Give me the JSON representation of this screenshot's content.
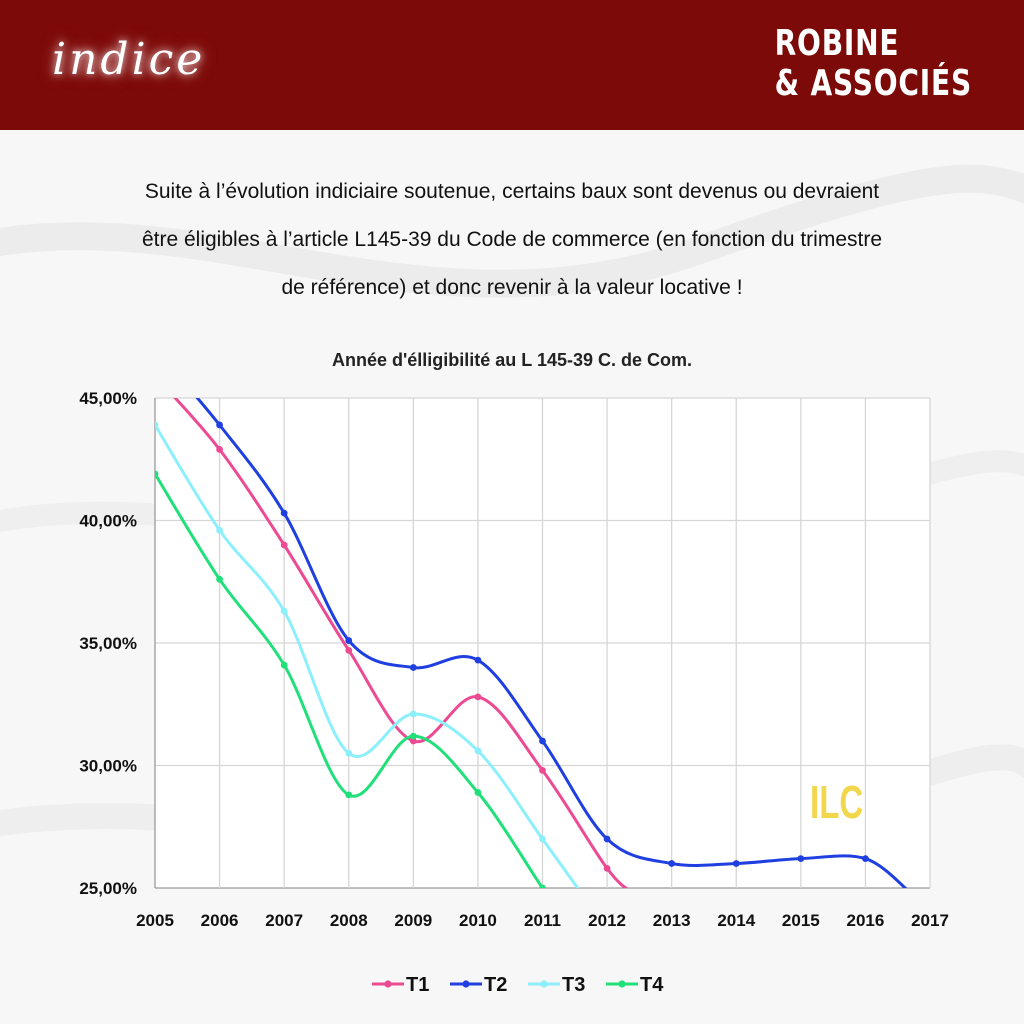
{
  "header": {
    "logo_text": "indice",
    "brand_line1": "ROBINE",
    "brand_line2": "& ASSOCIÉS",
    "background_color": "#7c0a08"
  },
  "intro": {
    "line1": "Suite à l’évolution indiciaire soutenue, certains baux sont devenus ou devraient",
    "line2": "être éligibles à l’article L145-39 du Code de commerce (en fonction du trimestre",
    "line3": "de référence) et donc revenir à la valeur locative  !"
  },
  "chart_data": {
    "type": "line",
    "title": "Année d'élligibilité au L 145-39 C. de Com.",
    "annotation": "ILC",
    "x": [
      2005,
      2006,
      2007,
      2008,
      2009,
      2010,
      2011,
      2012,
      2013,
      2014,
      2015,
      2016,
      2017
    ],
    "x_tick_labels": [
      "2005",
      "2006",
      "2007",
      "2008",
      "2009",
      "2010",
      "2011",
      "2012",
      "2013",
      "2014",
      "2015",
      "2016",
      "2017"
    ],
    "y_tick_labels": [
      "45,00%",
      "40,00%",
      "35,00%",
      "30,00%",
      "25,00%"
    ],
    "y_ticks": [
      45,
      40,
      35,
      30,
      25
    ],
    "xlim": [
      2005,
      2017
    ],
    "ylim": [
      25,
      45
    ],
    "grid": true,
    "legend_position": "bottom",
    "series": [
      {
        "name": "T1",
        "color": "#ec4a92",
        "points": [
          [
            2005,
            45.9
          ],
          [
            2006,
            42.9
          ],
          [
            2007,
            39.0
          ],
          [
            2008,
            34.7
          ],
          [
            2009,
            31.0
          ],
          [
            2010,
            32.8
          ],
          [
            2011,
            29.8
          ],
          [
            2012,
            25.8
          ],
          [
            2012.4,
            24.8
          ]
        ]
      },
      {
        "name": "T2",
        "color": "#1f3fe0",
        "points": [
          [
            2005,
            47.0
          ],
          [
            2006,
            43.9
          ],
          [
            2007,
            40.3
          ],
          [
            2008,
            35.1
          ],
          [
            2009,
            34.0
          ],
          [
            2010,
            34.3
          ],
          [
            2011,
            31.0
          ],
          [
            2012,
            27.0
          ],
          [
            2013,
            26.0
          ],
          [
            2014,
            26.0
          ],
          [
            2015,
            26.2
          ],
          [
            2016,
            26.2
          ],
          [
            2016.7,
            24.8
          ]
        ]
      },
      {
        "name": "T3",
        "color": "#8ceffc",
        "points": [
          [
            2005,
            43.9
          ],
          [
            2006,
            39.6
          ],
          [
            2007,
            36.3
          ],
          [
            2008,
            30.5
          ],
          [
            2009,
            32.1
          ],
          [
            2010,
            30.6
          ],
          [
            2011,
            27.0
          ],
          [
            2011.6,
            24.8
          ]
        ]
      },
      {
        "name": "T4",
        "color": "#21e07a",
        "points": [
          [
            2005,
            41.9
          ],
          [
            2006,
            37.6
          ],
          [
            2007,
            34.1
          ],
          [
            2008,
            28.8
          ],
          [
            2009,
            31.2
          ],
          [
            2010,
            28.9
          ],
          [
            2011,
            25.0
          ],
          [
            2011.1,
            24.8
          ]
        ]
      }
    ]
  }
}
